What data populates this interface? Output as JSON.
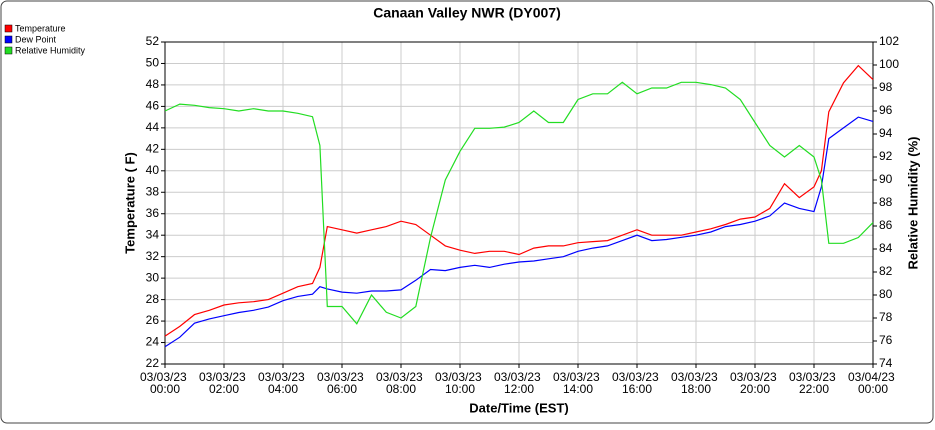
{
  "chart_data": {
    "type": "line",
    "title": "Canaan Valley NWR (DY007)",
    "xlabel": "Date/Time (EST)",
    "ylabel": "Temperature ( F)",
    "y2label": "Relative Humidity (%)",
    "x": [
      0,
      0.5,
      1,
      1.5,
      2,
      2.5,
      3,
      3.5,
      4,
      4.5,
      5,
      5.25,
      5.5,
      6,
      6.5,
      7,
      7.5,
      8,
      8.5,
      9,
      9.5,
      10,
      10.5,
      11,
      11.5,
      12,
      12.5,
      13,
      13.5,
      14,
      14.5,
      15,
      15.5,
      16,
      16.5,
      17,
      17.5,
      18,
      18.5,
      19,
      19.5,
      20,
      20.5,
      21,
      21.5,
      22,
      22.25,
      22.5,
      23,
      23.5,
      24
    ],
    "xlim": [
      0,
      24
    ],
    "xticks": [
      {
        "value": 0,
        "label": "03/03/23 00:00"
      },
      {
        "value": 2,
        "label": "03/03/23 02:00"
      },
      {
        "value": 4,
        "label": "03/03/23 04:00"
      },
      {
        "value": 6,
        "label": "03/03/23 06:00"
      },
      {
        "value": 8,
        "label": "03/03/23 08:00"
      },
      {
        "value": 10,
        "label": "03/03/23 10:00"
      },
      {
        "value": 12,
        "label": "03/03/23 12:00"
      },
      {
        "value": 14,
        "label": "03/03/23 14:00"
      },
      {
        "value": 16,
        "label": "03/03/23 16:00"
      },
      {
        "value": 18,
        "label": "03/03/23 18:00"
      },
      {
        "value": 20,
        "label": "03/03/23 20:00"
      },
      {
        "value": 22,
        "label": "03/03/23 22:00"
      },
      {
        "value": 24,
        "label": "03/04/23 00:00"
      }
    ],
    "ylim": [
      22,
      52
    ],
    "yticks": [
      22,
      24,
      26,
      28,
      30,
      32,
      34,
      36,
      38,
      40,
      42,
      44,
      46,
      48,
      50,
      52
    ],
    "y2lim": [
      74,
      102
    ],
    "y2ticks": [
      74,
      76,
      78,
      80,
      82,
      84,
      86,
      88,
      90,
      92,
      94,
      96,
      98,
      100,
      102
    ],
    "grid": true,
    "legend": "top-left",
    "series": [
      {
        "name": "Temperature",
        "color": "#ff0000",
        "values": [
          24.6,
          25.5,
          26.6,
          27.0,
          27.5,
          27.7,
          27.8,
          28.0,
          28.6,
          29.2,
          29.5,
          31.0,
          34.8,
          34.5,
          34.2,
          34.5,
          34.8,
          35.3,
          35.0,
          34.0,
          33.0,
          32.6,
          32.3,
          32.5,
          32.5,
          32.2,
          32.8,
          33.0,
          33.0,
          33.3,
          33.4,
          33.5,
          34.0,
          34.5,
          34.0,
          34.0,
          34.0,
          34.3,
          34.6,
          35.0,
          35.5,
          35.7,
          36.5,
          38.8,
          37.5,
          38.5,
          40.0,
          45.5,
          48.2,
          49.8,
          48.5
        ]
      },
      {
        "name": "Dew Point",
        "color": "#0000ff",
        "values": [
          23.6,
          24.5,
          25.8,
          26.2,
          26.5,
          26.8,
          27.0,
          27.3,
          27.9,
          28.3,
          28.5,
          29.2,
          29.0,
          28.7,
          28.6,
          28.8,
          28.8,
          28.9,
          29.8,
          30.8,
          30.7,
          31.0,
          31.2,
          31.0,
          31.3,
          31.5,
          31.6,
          31.8,
          32.0,
          32.5,
          32.8,
          33.0,
          33.5,
          34.0,
          33.5,
          33.6,
          33.8,
          34.0,
          34.3,
          34.8,
          35.0,
          35.3,
          35.8,
          37.0,
          36.5,
          36.2,
          38.5,
          43.0,
          44.0,
          45.0,
          44.6
        ]
      },
      {
        "name": "Relative Humidity",
        "color": "#22dd22",
        "axis": "y2",
        "values": [
          96,
          96.6,
          96.5,
          96.3,
          96.2,
          96.0,
          96.2,
          96.0,
          96.0,
          95.8,
          95.5,
          93,
          79,
          79,
          77.5,
          80,
          78.5,
          78,
          79,
          85,
          90,
          92.5,
          94.5,
          94.5,
          94.6,
          95,
          96,
          95,
          95,
          97,
          97.5,
          97.5,
          98.5,
          97.5,
          98,
          98,
          98.5,
          98.5,
          98.3,
          98,
          97,
          95,
          93,
          92,
          93,
          92,
          90,
          84.5,
          84.5,
          85,
          86.3
        ]
      }
    ]
  }
}
